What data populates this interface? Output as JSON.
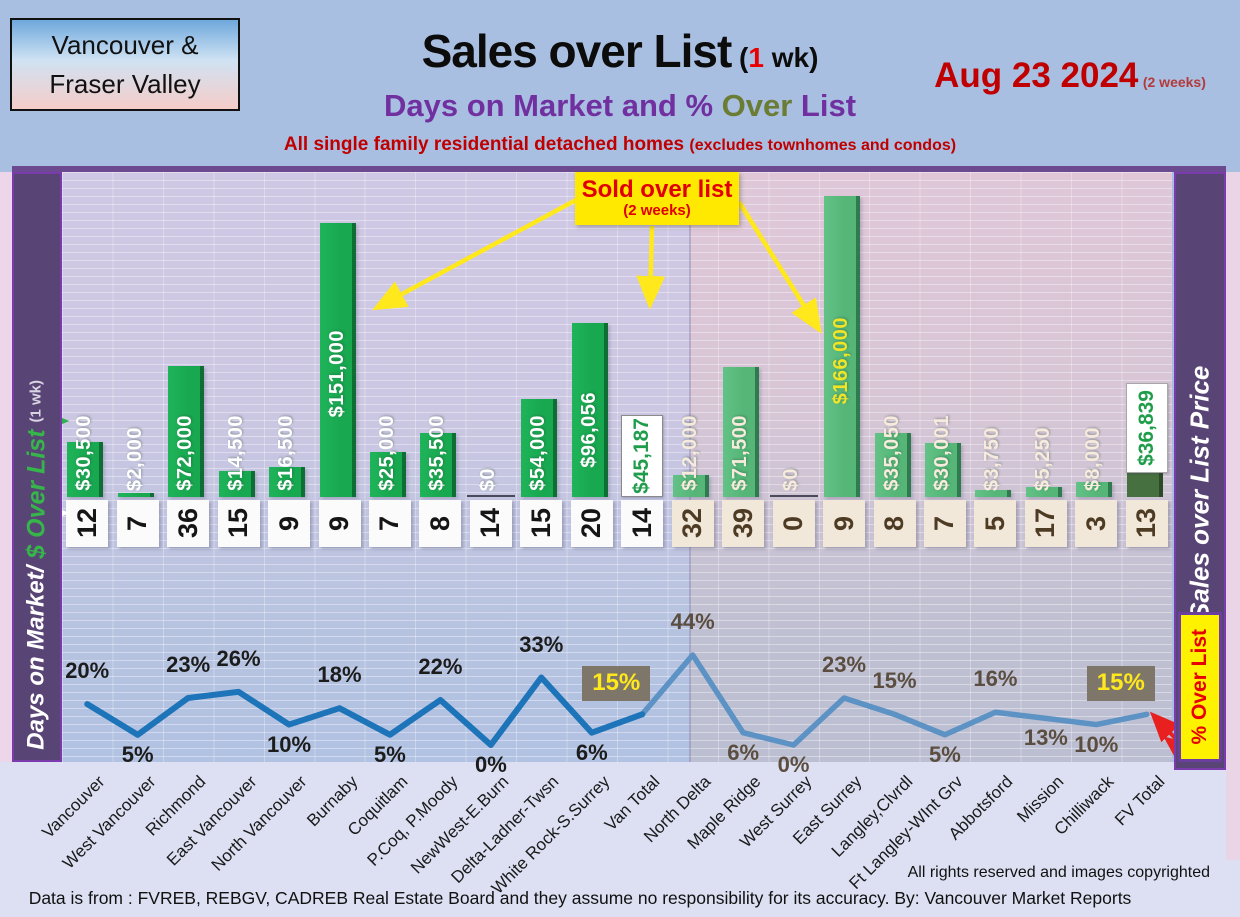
{
  "header": {
    "region_line1": "Vancouver &",
    "region_line2": "Fraser Valley",
    "title_main": "Sales over List",
    "title_sub_open": " (",
    "title_sub_num": "1",
    "title_sub_rest": " wk)",
    "date_main": "Aug 23  2024",
    "date_note": "(2 weeks)",
    "subtitle_p1": "Days on Market and % ",
    "subtitle_p2": "Over",
    "subtitle_p3": " List",
    "line3_main": "All single family residential detached homes ",
    "line3_small": "(excludes townhomes and condos)"
  },
  "left_sidebar": {
    "days": "Days on Market/",
    "dollar": " $ Over List ",
    "wk": "(1 wk)"
  },
  "right_sidebar": {
    "label": "Sales over List Price",
    "badge": "% Over List"
  },
  "callout": {
    "line1": "Sold over list",
    "line2": "(2 weeks)"
  },
  "footer": {
    "rights": "All rights reserved and  images copyrighted",
    "source": "Data is from : FVREB, REBGV, CADREB Real Estate Board and they assume no responsibility for its accuracy. By: Vancouver Market Reports"
  },
  "chart_data": {
    "type": "bar+line combo",
    "title": "Sales over List (1 wk) — Days on Market and % Over List",
    "categories": [
      "Vancouver",
      "West Vancouver",
      "Richmond",
      "East Vancouver",
      "North Vancouver",
      "Burnaby",
      "Coquitlam",
      "P.Coq, P.Moody",
      "NewWest-E.Burn",
      "Delta-Ladner-Twsn",
      "White Rock-S.Surrey",
      "Van Total",
      "North Delta",
      "Maple Ridge",
      "West Surrey",
      "East Surrey",
      "Langley,Clvrdl",
      "Ft Langley-WInt Grv",
      "Abbotsford",
      "Mission",
      "Chilliwack",
      "FV Total"
    ],
    "series": [
      {
        "name": "$ Over List",
        "type": "bar",
        "values": [
          30500,
          2000,
          72000,
          14500,
          16500,
          151000,
          25000,
          35500,
          0,
          54000,
          96056,
          45187,
          12000,
          71500,
          0,
          166000,
          35050,
          30001,
          3750,
          5250,
          8000,
          36839
        ],
        "labels": [
          "$30,500",
          "$2,000",
          "$72,000",
          "$14,500",
          "$16,500",
          "$151,000",
          "$25,000",
          "$35,500",
          "$0",
          "$54,000",
          "$96,056",
          "$45,187",
          "$12,000",
          "$71,500",
          "$0",
          "$166,000",
          "$35,050",
          "$30,001",
          "$3,750",
          "$5,250",
          "$8,000",
          "$36,839"
        ]
      },
      {
        "name": "Days on Market",
        "type": "value-row",
        "values": [
          12,
          7,
          36,
          15,
          9,
          9,
          7,
          8,
          14,
          15,
          20,
          14,
          32,
          39,
          0,
          9,
          8,
          7,
          5,
          17,
          3,
          13
        ],
        "labels": [
          "12",
          "7",
          "36",
          "15",
          "9",
          "9",
          "7",
          "8",
          "14",
          "15",
          "20",
          "14",
          "32",
          "39",
          "0",
          "9",
          "8",
          "7",
          "5",
          "17",
          "3",
          "13"
        ]
      },
      {
        "name": "% Over List",
        "type": "line",
        "values": [
          20,
          5,
          23,
          26,
          10,
          18,
          5,
          22,
          0,
          33,
          6,
          15,
          44,
          6,
          0,
          23,
          15,
          5,
          16,
          13,
          10,
          15
        ],
        "labels": [
          "20%",
          "5%",
          "23%",
          "26%",
          "10%",
          "18%",
          "5%",
          "22%",
          "0%",
          "33%",
          "6%",
          "15%",
          "44%",
          "6%",
          "0%",
          "23%",
          "15%",
          "5%",
          "16%",
          "13%",
          "10%",
          "15%"
        ]
      }
    ],
    "regions": [
      {
        "name": "Vancouver",
        "count": 12
      },
      {
        "name": "Fraser Valley",
        "count": 10
      }
    ],
    "totals_index": [
      11,
      21
    ],
    "ylim_bar": [
      0,
      170000
    ],
    "ylim_pct": [
      0,
      44
    ],
    "grid": "fine horizontal + column separators",
    "legend_position": "none",
    "pct_label_pos": [
      "a",
      "b",
      "a",
      "a",
      "b",
      "a",
      "b",
      "a",
      "b",
      "a",
      "b",
      "box",
      "a",
      "b",
      "b",
      "a",
      "a",
      "b",
      "a",
      "b",
      "b",
      "box"
    ],
    "colors": {
      "bar_van": "#18a850",
      "bar_van_edge": "#0e6e33",
      "bar_fv": "#55b678",
      "bar_fv_edge": "#2f7a4e",
      "bar_total_fv": "#46703f",
      "bar_total_fv_edge": "#2c4a28",
      "total_label_green": "#1f9d4b",
      "bar_label_van": "#ffffff",
      "bar_label_fv": "#f6ebdc",
      "bar_label_east_surrey": "#f0e427",
      "line_van": "#1e74b8",
      "line_fv": "#5c92c4",
      "pct_text_van": "#1c1c1c",
      "pct_text_fv": "#5b4e40",
      "pct_badge_bg": "#7e7669",
      "pct_badge_text": "#ffe81c",
      "day_badge_van_bg": "#fbfbfb",
      "day_badge_van_text": "#151515",
      "day_badge_fv_bg": "#f2e8da",
      "day_badge_fv_text": "#4e3b24",
      "arrow_yellow": "#ffe81c",
      "arrow_red": "#e82020"
    }
  }
}
